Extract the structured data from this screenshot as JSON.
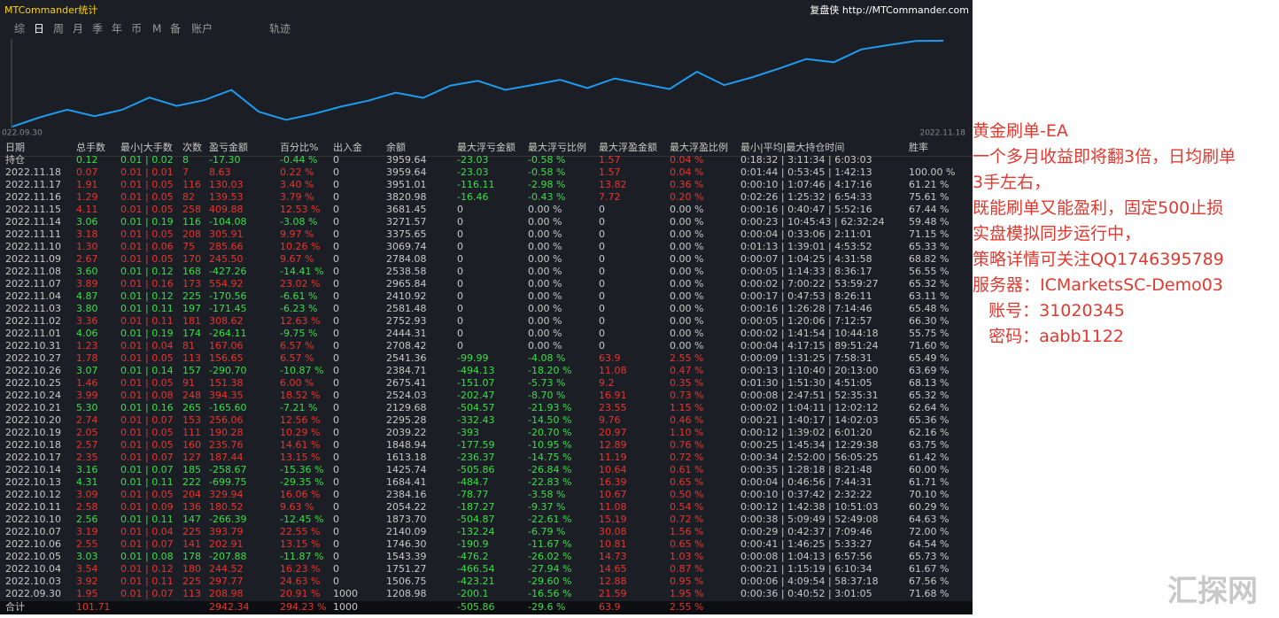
{
  "header": {
    "title": "MTCommander统计",
    "site": "复盘侠 http://MTCommander.com"
  },
  "tabs": [
    "综",
    "日",
    "周",
    "月",
    "季",
    "年",
    "币",
    "M",
    "备",
    "账户",
    "轨迹"
  ],
  "chart": {
    "start_label": "022.09.30",
    "end_label": "2022.11.18"
  },
  "table": {
    "columns": [
      "日期",
      "总手数",
      "最小|大手数",
      "次数",
      "盈亏金额",
      "百分比%",
      "出入金",
      "余额",
      "最大浮亏金额",
      "最大浮亏比例",
      "最大浮盈金额",
      "最大浮盈比例",
      "最小|平均|最大持仓时间",
      "胜率"
    ],
    "open_row": [
      "持仓",
      "0.12",
      "0.01 | 0.02",
      "8",
      "-17.30",
      "-0.44 %",
      "0",
      "3959.64",
      "-23.03",
      "-0.58 %",
      "1.57",
      "0.04 %",
      "0:18:32 | 3:11:34 | 6:03:03",
      ""
    ],
    "rows": [
      [
        "2022.11.18",
        "0.07",
        "0.01 | 0.01",
        "7",
        "8.63",
        "0.22 %",
        "0",
        "3959.64",
        "-23.03",
        "-0.58 %",
        "1.57",
        "0.04 %",
        "0:01:44 | 0:53:45 | 1:42:13",
        "100.00 %"
      ],
      [
        "2022.11.17",
        "1.91",
        "0.01 | 0.05",
        "116",
        "130.03",
        "3.40 %",
        "0",
        "3951.01",
        "-116.11",
        "-2.98 %",
        "13.82",
        "0.36 %",
        "0:00:10 | 1:07:46 | 4:17:16",
        "61.21 %"
      ],
      [
        "2022.11.16",
        "1.29",
        "0.01 | 0.05",
        "82",
        "139.53",
        "3.79 %",
        "0",
        "3820.98",
        "-16.46",
        "-0.43 %",
        "7.72",
        "0.20 %",
        "0:02:26 | 1:25:32 | 6:54:33",
        "75.61 %"
      ],
      [
        "2022.11.15",
        "4.11",
        "0.01 | 0.05",
        "258",
        "409.88",
        "12.53 %",
        "0",
        "3681.45",
        "0",
        "0.00 %",
        "0",
        "0.00 %",
        "0:00:16 | 0:40:47 | 5:52:16",
        "67.44 %"
      ],
      [
        "2022.11.14",
        "3.06",
        "0.01 | 0.19",
        "116",
        "-104.08",
        "-3.08 %",
        "0",
        "3271.57",
        "0",
        "0.00 %",
        "0",
        "0.00 %",
        "0:00:23 | 10:45:43 | 62:32:24",
        "59.48 %"
      ],
      [
        "2022.11.11",
        "3.18",
        "0.01 | 0.05",
        "208",
        "305.91",
        "9.97 %",
        "0",
        "3375.65",
        "0",
        "0.00 %",
        "0",
        "0.00 %",
        "0:00:04 | 0:33:06 | 2:11:01",
        "71.15 %"
      ],
      [
        "2022.11.10",
        "1.30",
        "0.01 | 0.06",
        "75",
        "285.66",
        "10.26 %",
        "0",
        "3069.74",
        "0",
        "0.00 %",
        "0",
        "0.00 %",
        "0:01:13 | 1:39:01 | 4:53:52",
        "65.33 %"
      ],
      [
        "2022.11.09",
        "2.67",
        "0.01 | 0.05",
        "170",
        "245.50",
        "9.67 %",
        "0",
        "2784.08",
        "0",
        "0.00 %",
        "0",
        "0.00 %",
        "0:00:07 | 1:04:25 | 4:31:58",
        "68.82 %"
      ],
      [
        "2022.11.08",
        "3.60",
        "0.01 | 0.12",
        "168",
        "-427.26",
        "-14.41 %",
        "0",
        "2538.58",
        "0",
        "0.00 %",
        "0",
        "0.00 %",
        "0:00:05 | 1:14:33 | 8:36:17",
        "56.55 %"
      ],
      [
        "2022.11.07",
        "3.89",
        "0.01 | 0.16",
        "173",
        "554.92",
        "23.02 %",
        "0",
        "2965.84",
        "0",
        "0.00 %",
        "0",
        "0.00 %",
        "0:00:02 | 7:00:22 | 53:59:27",
        "65.32 %"
      ],
      [
        "2022.11.04",
        "4.87",
        "0.01 | 0.12",
        "225",
        "-170.56",
        "-6.61 %",
        "0",
        "2410.92",
        "0",
        "0.00 %",
        "0",
        "0.00 %",
        "0:00:17 | 0:47:53 | 8:26:11",
        "63.11 %"
      ],
      [
        "2022.11.03",
        "3.80",
        "0.01 | 0.11",
        "197",
        "-171.45",
        "-6.23 %",
        "0",
        "2581.48",
        "0",
        "0.00 %",
        "0",
        "0.00 %",
        "0:00:16 | 1:26:28 | 7:14:46",
        "65.48 %"
      ],
      [
        "2022.11.02",
        "3.36",
        "0.01 | 0.11",
        "181",
        "308.62",
        "12.63 %",
        "0",
        "2752.93",
        "0",
        "0.00 %",
        "0",
        "0.00 %",
        "0:00:05 | 1:20:06 | 7:12:57",
        "66.30 %"
      ],
      [
        "2022.11.01",
        "4.06",
        "0.01 | 0.19",
        "174",
        "-264.11",
        "-9.75 %",
        "0",
        "2444.31",
        "0",
        "0.00 %",
        "0",
        "0.00 %",
        "0:00:02 | 1:41:54 | 10:44:18",
        "55.75 %"
      ],
      [
        "2022.10.31",
        "1.23",
        "0.01 | 0.04",
        "81",
        "167.06",
        "6.57 %",
        "0",
        "2708.42",
        "0",
        "0.00 %",
        "0",
        "0.00 %",
        "0:00:04 | 4:17:15 | 89:51:24",
        "71.60 %"
      ],
      [
        "2022.10.27",
        "1.78",
        "0.01 | 0.05",
        "113",
        "156.65",
        "6.57 %",
        "0",
        "2541.36",
        "-99.99",
        "-4.08 %",
        "63.9",
        "2.55 %",
        "0:00:09 | 1:31:25 | 7:58:31",
        "65.49 %"
      ],
      [
        "2022.10.26",
        "3.07",
        "0.01 | 0.14",
        "157",
        "-290.70",
        "-10.87 %",
        "0",
        "2384.71",
        "-494.13",
        "-18.20 %",
        "11.08",
        "0.47 %",
        "0:00:13 | 1:10:40 | 20:13:00",
        "63.69 %"
      ],
      [
        "2022.10.25",
        "1.46",
        "0.01 | 0.05",
        "91",
        "151.38",
        "6.00 %",
        "0",
        "2675.41",
        "-151.07",
        "-5.73 %",
        "9.2",
        "0.35 %",
        "0:01:30 | 1:51:30 | 4:51:05",
        "68.13 %"
      ],
      [
        "2022.10.24",
        "3.99",
        "0.01 | 0.08",
        "248",
        "394.35",
        "18.52 %",
        "0",
        "2524.03",
        "-202.47",
        "-8.70 %",
        "16.91",
        "0.73 %",
        "0:00:08 | 2:47:51 | 52:35:31",
        "65.32 %"
      ],
      [
        "2022.10.21",
        "5.30",
        "0.01 | 0.16",
        "265",
        "-165.60",
        "-7.21 %",
        "0",
        "2129.68",
        "-504.57",
        "-21.93 %",
        "23.55",
        "1.15 %",
        "0:00:02 | 1:04:11 | 12:02:12",
        "62.64 %"
      ],
      [
        "2022.10.20",
        "2.74",
        "0.01 | 0.07",
        "153",
        "256.06",
        "12.56 %",
        "0",
        "2295.28",
        "-332.43",
        "-14.50 %",
        "9.76",
        "0.46 %",
        "0:00:21 | 1:40:17 | 14:02:03",
        "65.36 %"
      ],
      [
        "2022.10.19",
        "2.05",
        "0.01 | 0.05",
        "111",
        "190.28",
        "10.29 %",
        "0",
        "2039.22",
        "-393",
        "-20.70 %",
        "20.97",
        "1.10 %",
        "0:00:12 | 1:39:02 | 6:01:20",
        "62.16 %"
      ],
      [
        "2022.10.18",
        "2.57",
        "0.01 | 0.05",
        "160",
        "235.76",
        "14.61 %",
        "0",
        "1848.94",
        "-177.59",
        "-10.95 %",
        "12.89",
        "0.76 %",
        "0:00:25 | 1:45:34 | 12:29:38",
        "63.75 %"
      ],
      [
        "2022.10.17",
        "2.35",
        "0.01 | 0.07",
        "127",
        "187.44",
        "13.15 %",
        "0",
        "1613.18",
        "-236.37",
        "-14.75 %",
        "11.19",
        "0.72 %",
        "0:00:34 | 2:52:00 | 56:05:25",
        "61.42 %"
      ],
      [
        "2022.10.14",
        "3.16",
        "0.01 | 0.07",
        "185",
        "-258.67",
        "-15.36 %",
        "0",
        "1425.74",
        "-505.86",
        "-26.84 %",
        "10.64",
        "0.61 %",
        "0:00:35 | 1:28:18 | 8:21:48",
        "60.00 %"
      ],
      [
        "2022.10.13",
        "4.31",
        "0.01 | 0.11",
        "222",
        "-699.75",
        "-29.35 %",
        "0",
        "1684.41",
        "-484.7",
        "-22.83 %",
        "16.39",
        "0.65 %",
        "0:00:04 | 0:46:56 | 7:44:31",
        "61.71 %"
      ],
      [
        "2022.10.12",
        "3.09",
        "0.01 | 0.05",
        "204",
        "329.94",
        "16.06 %",
        "0",
        "2384.16",
        "-78.77",
        "-3.58 %",
        "10.67",
        "0.50 %",
        "0:00:10 | 0:37:42 | 2:32:22",
        "70.10 %"
      ],
      [
        "2022.10.11",
        "2.58",
        "0.01 | 0.09",
        "136",
        "180.52",
        "9.63 %",
        "0",
        "2054.22",
        "-187.27",
        "-9.37 %",
        "11.08",
        "0.54 %",
        "0:00:12 | 1:42:38 | 10:51:03",
        "60.29 %"
      ],
      [
        "2022.10.10",
        "2.56",
        "0.01 | 0.11",
        "147",
        "-266.39",
        "-12.45 %",
        "0",
        "1873.70",
        "-504.87",
        "-22.61 %",
        "15.19",
        "0.72 %",
        "0:00:38 | 5:09:49 | 52:49:08",
        "64.63 %"
      ],
      [
        "2022.10.07",
        "3.19",
        "0.01 | 0.04",
        "225",
        "393.79",
        "22.55 %",
        "0",
        "2140.09",
        "-132.24",
        "-6.79 %",
        "30.08",
        "1.56 %",
        "0:00:29 | 0:42:37 | 7:09:46",
        "72.00 %"
      ],
      [
        "2022.10.06",
        "2.55",
        "0.01 | 0.07",
        "141",
        "202.91",
        "13.15 %",
        "0",
        "1746.30",
        "-190.9",
        "-11.67 %",
        "10.81",
        "0.65 %",
        "0:00:41 | 1:46:25 | 5:33:27",
        "64.54 %"
      ],
      [
        "2022.10.05",
        "3.03",
        "0.01 | 0.08",
        "178",
        "-207.88",
        "-11.87 %",
        "0",
        "1543.39",
        "-476.2",
        "-26.02 %",
        "14.73",
        "1.03 %",
        "0:00:08 | 1:04:13 | 6:57:56",
        "65.73 %"
      ],
      [
        "2022.10.04",
        "3.54",
        "0.01 | 0.12",
        "180",
        "244.52",
        "16.23 %",
        "0",
        "1751.27",
        "-466.54",
        "-27.94 %",
        "14.65",
        "0.87 %",
        "0:00:21 | 1:15:19 | 6:10:34",
        "61.67 %"
      ],
      [
        "2022.10.03",
        "3.92",
        "0.01 | 0.11",
        "225",
        "297.77",
        "24.63 %",
        "0",
        "1506.75",
        "-423.21",
        "-29.60 %",
        "12.88",
        "0.95 %",
        "0:00:06 | 4:09:54 | 58:37:18",
        "67.56 %"
      ],
      [
        "2022.09.30",
        "1.95",
        "0.01 | 0.07",
        "113",
        "208.98",
        "20.91 %",
        "1000",
        "1208.98",
        "-200.1",
        "-16.56 %",
        "21.59",
        "1.95 %",
        "0:00:36 | 0:40:52 | 3:01:05",
        "71.68 %"
      ]
    ],
    "total": [
      "合计",
      "101.71",
      "",
      "",
      "2942.34",
      "294.23 %",
      "1000",
      "",
      "-505.86",
      "-29.6 %",
      "63.9",
      "2.55 %",
      "",
      ""
    ]
  },
  "note": [
    "黄金刷单-EA",
    "一个多月收益即将翻3倍，日均刷单",
    "3手左右，",
    "既能刷单又能盈利，固定500止损",
    "实盘模拟同步运行中，",
    "策略详情可关注QQ1746395789",
    "服务器：ICMarketsSC-Demo03",
    "   账号：31020345",
    "   密码：aabb1122"
  ],
  "watermark": "汇探网"
}
